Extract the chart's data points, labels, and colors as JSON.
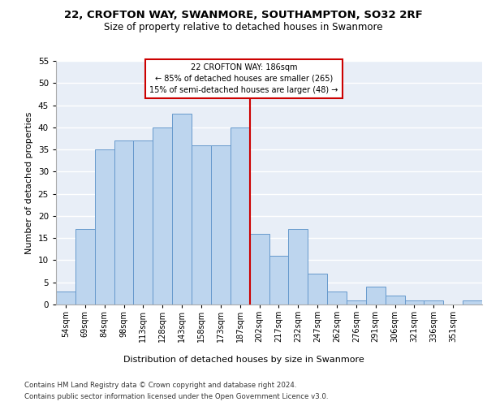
{
  "title1": "22, CROFTON WAY, SWANMORE, SOUTHAMPTON, SO32 2RF",
  "title2": "Size of property relative to detached houses in Swanmore",
  "xlabel": "Distribution of detached houses by size in Swanmore",
  "ylabel": "Number of detached properties",
  "bar_values": [
    3,
    17,
    35,
    37,
    37,
    40,
    43,
    36,
    36,
    40,
    16,
    11,
    17,
    7,
    3,
    1,
    4,
    2,
    1,
    1,
    0,
    1
  ],
  "bin_labels": [
    "54sqm",
    "69sqm",
    "84sqm",
    "98sqm",
    "113sqm",
    "128sqm",
    "143sqm",
    "158sqm",
    "173sqm",
    "187sqm",
    "202sqm",
    "217sqm",
    "232sqm",
    "247sqm",
    "262sqm",
    "276sqm",
    "291sqm",
    "306sqm",
    "321sqm",
    "336sqm",
    "351sqm"
  ],
  "bar_color": "#bdd5ee",
  "bar_edge_color": "#6699cc",
  "background_color": "#e8eef7",
  "grid_color": "#ffffff",
  "vline_color": "#cc0000",
  "vline_x_bin_index": 9.5,
  "ylim": [
    0,
    55
  ],
  "yticks": [
    0,
    5,
    10,
    15,
    20,
    25,
    30,
    35,
    40,
    45,
    50,
    55
  ],
  "annotation_line1": "22 CROFTON WAY: 186sqm",
  "annotation_line2": "← 85% of detached houses are smaller (265)",
  "annotation_line3": "15% of semi-detached houses are larger (48) →",
  "footnote1": "Contains HM Land Registry data © Crown copyright and database right 2024.",
  "footnote2": "Contains public sector information licensed under the Open Government Licence v3.0."
}
